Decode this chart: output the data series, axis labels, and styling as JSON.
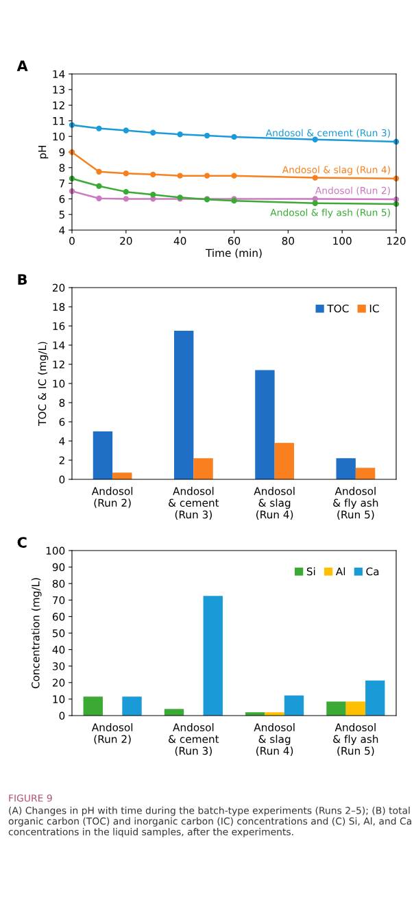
{
  "chart_data": [
    {
      "type": "line",
      "title": "A",
      "xlabel": "Time (min)",
      "ylabel": "pH",
      "xlim": [
        0,
        120
      ],
      "xticks": [
        0,
        20,
        40,
        60,
        80,
        100,
        120
      ],
      "ylim": [
        4,
        14
      ],
      "yticks": [
        4,
        5,
        6,
        7,
        8,
        9,
        10,
        11,
        12,
        13,
        14
      ],
      "x": [
        0,
        10,
        20,
        30,
        40,
        50,
        60,
        90,
        120
      ],
      "marker": "circle",
      "line_style": "solid",
      "grid": false,
      "series": [
        {
          "name": "Andosol & cement (Run 3)",
          "color": "#1a9bd7",
          "values": [
            10.73,
            10.51,
            10.38,
            10.24,
            10.13,
            10.05,
            9.97,
            9.8,
            9.66
          ]
        },
        {
          "name": "Andosol & slag (Run 4)",
          "color": "#f7801e",
          "values": [
            8.99,
            7.74,
            7.63,
            7.56,
            7.48,
            7.48,
            7.48,
            7.35,
            7.3
          ]
        },
        {
          "name": "Andosol (Run 2)",
          "color": "#cc79bf",
          "values": [
            6.49,
            6.03,
            6.0,
            6.0,
            6.0,
            6.0,
            6.0,
            6.0,
            5.97
          ]
        },
        {
          "name": "Andosol & fly ash (Run 5)",
          "color": "#3aaa35",
          "values": [
            7.3,
            6.82,
            6.45,
            6.27,
            6.09,
            5.96,
            5.88,
            5.72,
            5.67
          ]
        }
      ]
    },
    {
      "type": "bar",
      "title": "B",
      "ylabel": "TOC & IC (mg/L)",
      "ylim": [
        0,
        20
      ],
      "yticks": [
        0,
        2,
        4,
        6,
        8,
        10,
        12,
        14,
        16,
        18,
        20
      ],
      "grid": false,
      "legend": "top right",
      "categories": [
        "Andosol\n(Run 2)",
        "Andosol\n& cement\n(Run 3)",
        "Andosol\n& slag\n(Run 4)",
        "Andosol\n& fly ash\n(Run 5)"
      ],
      "series": [
        {
          "name": "TOC",
          "color": "#1f6fc6",
          "values": [
            5.0,
            15.5,
            11.4,
            2.2
          ]
        },
        {
          "name": "IC",
          "color": "#f97f1f",
          "values": [
            0.7,
            2.2,
            3.8,
            1.2
          ]
        }
      ]
    },
    {
      "type": "bar",
      "title": "C",
      "ylabel": "Concentration (mg/L)",
      "ylim": [
        0,
        100
      ],
      "yticks": [
        0,
        10,
        20,
        30,
        40,
        50,
        60,
        70,
        80,
        90,
        100
      ],
      "grid": false,
      "legend": "top right",
      "categories": [
        "Andosol\n(Run 2)",
        "Andosol\n& cement\n(Run 3)",
        "Andosol\n& slag\n(Run 4)",
        "Andosol\n& fly ash\n(Run 5)"
      ],
      "series": [
        {
          "name": "Si",
          "color": "#3aaa35",
          "values": [
            11.5,
            4.0,
            2.0,
            8.5
          ]
        },
        {
          "name": "Al",
          "color": "#ffc000",
          "values": [
            null,
            null,
            2.0,
            8.5
          ]
        },
        {
          "name": "Ca",
          "color": "#1a9bd7",
          "values": [
            11.5,
            72.5,
            12.2,
            21.3
          ]
        }
      ],
      "annotations": [
        "FIGURE 9",
        "(A) Changes in pH with time during the batch-type experiments (Runs 2–5); (B) total organic carbon (TOC) and inorganic carbon (IC) concentrations and (C) Si, Al, and Ca concentrations in the liquid samples, after the experiments."
      ]
    }
  ]
}
